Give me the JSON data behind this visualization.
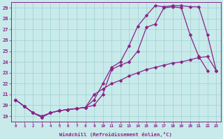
{
  "title": "",
  "xlabel": "Windchill (Refroidissement éolien,°C)",
  "background_color": "#c8eaea",
  "line_color": "#882288",
  "grid_color": "#9fcfcf",
  "xlim": [
    -0.5,
    23.5
  ],
  "ylim": [
    18.5,
    29.5
  ],
  "xtick_labels": [
    "0",
    "1",
    "2",
    "3",
    "4",
    "5",
    "6",
    "7",
    "8",
    "9",
    "10",
    "11",
    "12",
    "13",
    "14",
    "15",
    "16",
    "17",
    "18",
    "19",
    "20",
    "21",
    "22",
    "23"
  ],
  "ytick_labels": [
    "19",
    "20",
    "21",
    "22",
    "23",
    "24",
    "25",
    "26",
    "27",
    "28",
    "29"
  ],
  "line1_x": [
    0,
    1,
    2,
    3,
    4,
    5,
    6,
    7,
    8,
    9,
    10,
    11,
    12,
    13,
    14,
    15,
    16,
    17,
    18,
    19,
    20,
    21,
    22
  ],
  "line1_y": [
    20.5,
    19.9,
    19.3,
    19.0,
    19.3,
    19.5,
    19.6,
    19.7,
    19.8,
    20.0,
    21.0,
    23.3,
    23.7,
    24.0,
    25.0,
    27.2,
    27.5,
    29.0,
    29.1,
    29.0,
    26.5,
    24.5,
    23.2
  ],
  "line2_x": [
    0,
    1,
    2,
    3,
    4,
    5,
    6,
    7,
    8,
    9,
    10,
    11,
    12,
    13,
    14,
    15,
    16,
    17,
    18,
    19,
    20,
    21,
    22,
    23
  ],
  "line2_y": [
    20.5,
    19.9,
    19.3,
    18.9,
    19.3,
    19.5,
    19.6,
    19.7,
    19.8,
    20.5,
    22.0,
    23.5,
    24.0,
    25.5,
    27.3,
    28.3,
    29.2,
    29.1,
    29.2,
    29.2,
    29.1,
    29.1,
    26.5,
    23.2
  ],
  "line3_x": [
    0,
    1,
    2,
    3,
    4,
    5,
    6,
    7,
    8,
    9,
    10,
    11,
    12,
    13,
    14,
    15,
    16,
    17,
    18,
    19,
    20,
    21,
    22,
    23
  ],
  "line3_y": [
    20.5,
    19.9,
    19.3,
    18.9,
    19.3,
    19.5,
    19.6,
    19.7,
    19.8,
    21.0,
    21.5,
    22.0,
    22.3,
    22.7,
    23.0,
    23.3,
    23.5,
    23.7,
    23.9,
    24.0,
    24.2,
    24.4,
    24.5,
    23.2
  ],
  "marker": "D",
  "markersize": 2.5,
  "linewidth": 0.9
}
